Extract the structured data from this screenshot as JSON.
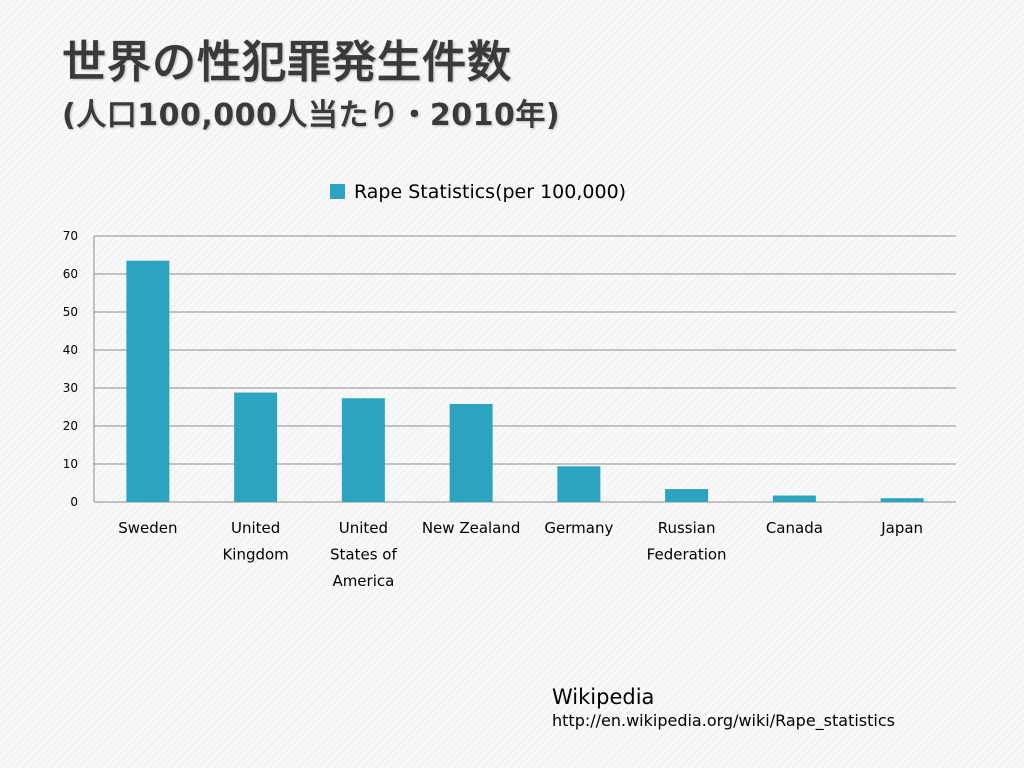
{
  "slide": {
    "title_line1": "世界の性犯罪発生件数",
    "title_line2": "(人口100,000人当たり・2010年)",
    "source_name": "Wikipedia",
    "source_url": "http://en.wikipedia.org/wiki/Rape_statistics"
  },
  "chart_data": {
    "type": "bar",
    "categories": [
      [
        "Sweden"
      ],
      [
        "United",
        "Kingdom"
      ],
      [
        "United",
        "States of",
        "America"
      ],
      [
        "New Zealand"
      ],
      [
        "Germany"
      ],
      [
        "Russian",
        "Federation"
      ],
      [
        "Canada"
      ],
      [
        "Japan"
      ]
    ],
    "series": [
      {
        "name": "Rape Statistics(per 100,000)",
        "values": [
          63.5,
          28.8,
          27.3,
          25.8,
          9.4,
          3.4,
          1.7,
          1.0
        ],
        "color": "#2ca3bf"
      }
    ],
    "ylim": [
      0,
      70
    ],
    "yticks": [
      0,
      10,
      20,
      30,
      40,
      50,
      60,
      70
    ],
    "grid": true,
    "legend_position": "top"
  }
}
